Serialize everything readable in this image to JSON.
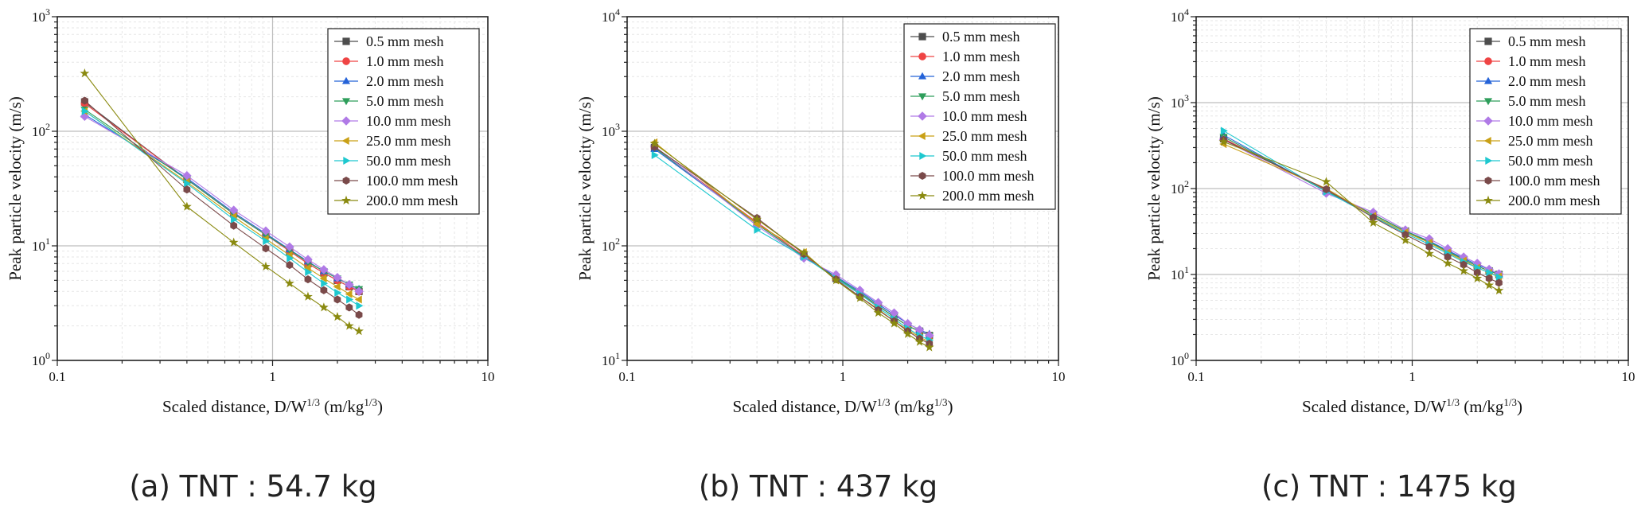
{
  "legend_labels": [
    "0.5 mm mesh",
    "1.0 mm mesh",
    "2.0 mm mesh",
    "5.0 mm mesh",
    "10.0 mm mesh",
    "25.0 mm mesh",
    "50.0 mm mesh",
    "100.0 mm mesh",
    "200.0 mm mesh"
  ],
  "series_style": [
    {
      "color": "#4d4d4d",
      "marker": "square"
    },
    {
      "color": "#ef4444",
      "marker": "circle"
    },
    {
      "color": "#2563d8",
      "marker": "triangle-up"
    },
    {
      "color": "#2e9e5b",
      "marker": "triangle-down"
    },
    {
      "color": "#b07ae6",
      "marker": "diamond"
    },
    {
      "color": "#c9a016",
      "marker": "triangle-left"
    },
    {
      "color": "#1ec8cf",
      "marker": "triangle-right"
    },
    {
      "color": "#7a4a4a",
      "marker": "hexagon"
    },
    {
      "color": "#8a8a10",
      "marker": "star"
    }
  ],
  "chart_data": [
    {
      "type": "scatter",
      "caption": "(a) TNT : 54.7 kg",
      "xlabel": "Scaled distance, D/W^1/3 (m/kg^1/3)",
      "ylabel": "Peak particle velocity (m/s)",
      "xscale": "log",
      "yscale": "log",
      "xlim": [
        0.1,
        10
      ],
      "ylim": [
        1,
        1000
      ],
      "xticks": [
        "0.1",
        "1",
        "10"
      ],
      "yticks": [
        {
          "base": "10",
          "exp": "0"
        },
        {
          "base": "10",
          "exp": "1"
        },
        {
          "base": "10",
          "exp": "2"
        },
        {
          "base": "10",
          "exp": "3"
        }
      ],
      "grid": true,
      "legend": "top-right",
      "x": [
        0.134,
        0.4,
        0.66,
        0.93,
        1.2,
        1.46,
        1.73,
        2.0,
        2.27,
        2.52
      ],
      "series": [
        {
          "name": "0.5 mm mesh",
          "values": [
            180,
            38,
            19,
            12.5,
            9.0,
            7.0,
            5.8,
            5.0,
            4.4,
            4.0
          ]
        },
        {
          "name": "1.0 mm mesh",
          "values": [
            175,
            38,
            19,
            12.5,
            9.0,
            7.0,
            5.8,
            5.0,
            4.4,
            4.0
          ]
        },
        {
          "name": "2.0 mm mesh",
          "values": [
            140,
            39,
            19.5,
            12.8,
            9.3,
            7.3,
            6.0,
            5.2,
            4.6,
            4.2
          ]
        },
        {
          "name": "5.0 mm mesh",
          "values": [
            155,
            38,
            19,
            12.5,
            9.2,
            7.2,
            6.0,
            5.2,
            4.6,
            4.2
          ]
        },
        {
          "name": "10.0 mm mesh",
          "values": [
            135,
            41,
            20.5,
            13.5,
            9.8,
            7.6,
            6.2,
            5.3,
            4.6,
            4.0
          ]
        },
        {
          "name": "25.0 mm mesh",
          "values": [
            150,
            36,
            18,
            11.5,
            8.3,
            6.4,
            5.2,
            4.4,
            3.8,
            3.4
          ]
        },
        {
          "name": "50.0 mm mesh",
          "values": [
            150,
            35,
            17,
            11,
            7.8,
            5.9,
            4.7,
            3.9,
            3.4,
            3.0
          ]
        },
        {
          "name": "100.0 mm mesh",
          "values": [
            185,
            31,
            15,
            9.5,
            6.8,
            5.1,
            4.1,
            3.4,
            2.9,
            2.5
          ]
        },
        {
          "name": "200.0 mm mesh",
          "values": [
            320,
            22,
            10.7,
            6.6,
            4.7,
            3.6,
            2.9,
            2.4,
            2.0,
            1.8
          ]
        }
      ]
    },
    {
      "type": "scatter",
      "caption": "(b) TNT : 437 kg",
      "xlabel": "Scaled distance, D/W^1/3 (m/kg^1/3)",
      "ylabel": "Peak particle velocity (m/s)",
      "xscale": "log",
      "yscale": "log",
      "xlim": [
        0.1,
        10
      ],
      "ylim": [
        10,
        10000
      ],
      "xticks": [
        "0.1",
        "1",
        "10"
      ],
      "yticks": [
        {
          "base": "10",
          "exp": "1"
        },
        {
          "base": "10",
          "exp": "2"
        },
        {
          "base": "10",
          "exp": "3"
        },
        {
          "base": "10",
          "exp": "4"
        }
      ],
      "grid": true,
      "legend": "top-right",
      "x": [
        0.134,
        0.4,
        0.66,
        0.93,
        1.2,
        1.46,
        1.73,
        2.0,
        2.27,
        2.52
      ],
      "series": [
        {
          "name": "0.5 mm mesh",
          "values": [
            720,
            160,
            82,
            52,
            38,
            30,
            24,
            20,
            18,
            16.5
          ]
        },
        {
          "name": "1.0 mm mesh",
          "values": [
            720,
            160,
            82,
            52,
            38,
            30,
            24,
            20,
            18,
            16.5
          ]
        },
        {
          "name": "2.0 mm mesh",
          "values": [
            700,
            155,
            80,
            54,
            40,
            31,
            25,
            21,
            18.5,
            17
          ]
        },
        {
          "name": "5.0 mm mesh",
          "values": [
            720,
            155,
            80,
            53,
            39,
            30,
            24,
            20,
            18,
            16.5
          ]
        },
        {
          "name": "10.0 mm mesh",
          "values": [
            740,
            150,
            78,
            56,
            41,
            32,
            26,
            21,
            18.5,
            16.5
          ]
        },
        {
          "name": "25.0 mm mesh",
          "values": [
            800,
            155,
            88,
            50,
            36,
            28,
            22,
            18.5,
            16,
            14.5
          ]
        },
        {
          "name": "50.0 mm mesh",
          "values": [
            620,
            138,
            80,
            52,
            38,
            29,
            23,
            19,
            16.5,
            15
          ]
        },
        {
          "name": "100.0 mm mesh",
          "values": [
            730,
            175,
            85,
            51,
            36,
            27.5,
            22,
            18,
            15.5,
            14
          ]
        },
        {
          "name": "200.0 mm mesh",
          "values": [
            780,
            170,
            87,
            50,
            35,
            26,
            21,
            17,
            14.5,
            13
          ]
        }
      ]
    },
    {
      "type": "scatter",
      "caption": "(c) TNT : 1475 kg",
      "xlabel": "Scaled distance, D/W^1/3 (m/kg^1/3)",
      "ylabel": "Peak particle velocity (m/s)",
      "xscale": "log",
      "yscale": "log",
      "xlim": [
        0.1,
        10
      ],
      "ylim": [
        1,
        10000
      ],
      "xticks": [
        "0.1",
        "1",
        "10"
      ],
      "yticks": [
        {
          "base": "10",
          "exp": "0"
        },
        {
          "base": "10",
          "exp": "1"
        },
        {
          "base": "10",
          "exp": "2"
        },
        {
          "base": "10",
          "exp": "3"
        },
        {
          "base": "10",
          "exp": "4"
        }
      ],
      "grid": true,
      "legend": "top-right",
      "x": [
        0.134,
        0.4,
        0.66,
        0.93,
        1.2,
        1.46,
        1.73,
        2.0,
        2.27,
        2.52
      ],
      "series": [
        {
          "name": "0.5 mm mesh",
          "values": [
            380,
            95,
            50,
            32,
            24,
            18.5,
            15,
            12.5,
            11,
            10
          ]
        },
        {
          "name": "1.0 mm mesh",
          "values": [
            380,
            95,
            50,
            32,
            24,
            18.5,
            15,
            12.5,
            11,
            10
          ]
        },
        {
          "name": "2.0 mm mesh",
          "values": [
            420,
            92,
            50,
            32,
            24.5,
            19,
            15.5,
            13,
            11.5,
            10.2
          ]
        },
        {
          "name": "5.0 mm mesh",
          "values": [
            400,
            93,
            50,
            32,
            24,
            18.5,
            15,
            12.5,
            11,
            10
          ]
        },
        {
          "name": "10.0 mm mesh",
          "values": [
            370,
            88,
            53,
            33,
            26,
            20,
            16,
            13.5,
            11.5,
            10.2
          ]
        },
        {
          "name": "25.0 mm mesh",
          "values": [
            330,
            100,
            48,
            31,
            23.5,
            18,
            14.5,
            12,
            10.5,
            9.5
          ]
        },
        {
          "name": "50.0 mm mesh",
          "values": [
            470,
            92,
            47,
            30,
            22.5,
            17.5,
            14,
            12,
            10.5,
            9.3
          ]
        },
        {
          "name": "100.0 mm mesh",
          "values": [
            370,
            98,
            46,
            29,
            21,
            16,
            13,
            10.5,
            9,
            8
          ]
        },
        {
          "name": "200.0 mm mesh",
          "values": [
            350,
            120,
            40,
            25,
            17.5,
            13.5,
            11,
            9,
            7.5,
            6.5
          ]
        }
      ]
    }
  ]
}
